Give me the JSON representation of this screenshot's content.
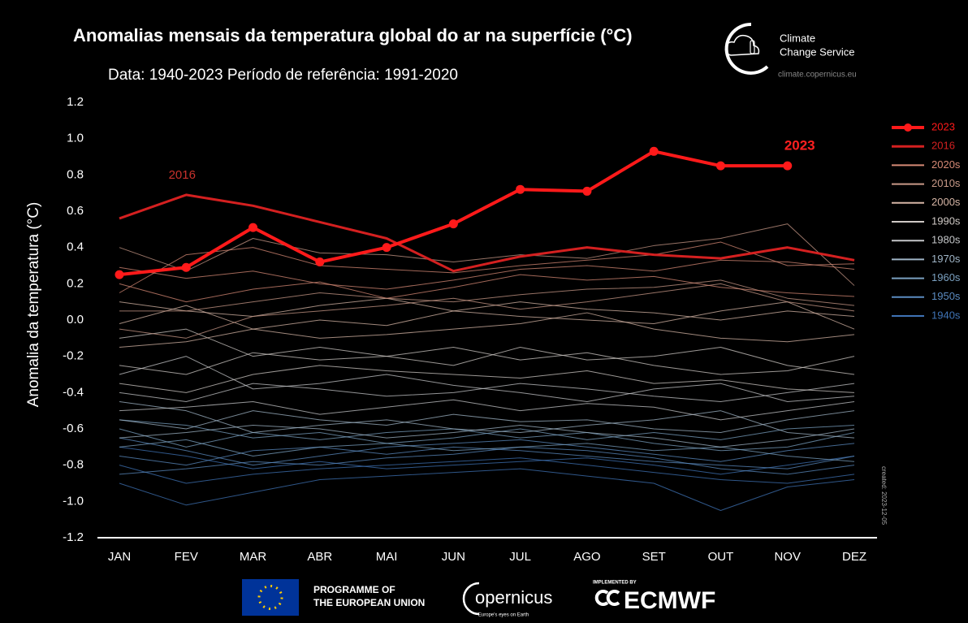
{
  "chart_data": {
    "type": "line",
    "title": "Anomalias mensais da temperatura global do ar na superfície (°C)",
    "subtitle": "Data: 1940-2023  Período de referência: 1991-2020",
    "y_label": "Anomalia da temperatura (°C)",
    "annotations": [
      {
        "text": "2016",
        "color": "#c8322c"
      },
      {
        "text": "2023",
        "color": "#ff2020"
      }
    ],
    "categories": [
      "JAN",
      "FEV",
      "MAR",
      "ABR",
      "MAI",
      "JUN",
      "JUL",
      "AGO",
      "SET",
      "OUT",
      "NOV",
      "DEZ"
    ],
    "ylim": [
      -1.2,
      1.2
    ],
    "yticks": [
      -1.2,
      {
        "value": -1,
        "label": "-1.0"
      },
      -0.8,
      -0.6,
      -0.4,
      -0.2,
      {
        "value": 0,
        "label": "0.0"
      },
      0.2,
      0.4,
      0.6,
      0.8,
      {
        "value": 1,
        "label": "1.0"
      },
      1.2
    ],
    "series": [
      {
        "name": "2023",
        "color": "#ff1a1a",
        "width": 4,
        "marker": true,
        "values": [
          0.25,
          0.29,
          0.51,
          0.32,
          0.4,
          0.53,
          0.72,
          0.71,
          0.93,
          0.85,
          0.85,
          null
        ]
      },
      {
        "name": "2016",
        "color": "#d42020",
        "width": 3,
        "values": [
          0.56,
          0.69,
          0.63,
          0.54,
          0.45,
          0.27,
          0.35,
          0.4,
          0.36,
          0.34,
          0.4,
          0.33
        ]
      },
      {
        "name": "2020s",
        "color": "#d78a75",
        "values": [
          0.29,
          0.23,
          0.27,
          0.2,
          0.17,
          0.22,
          0.28,
          0.3,
          0.27,
          0.33,
          0.32,
          0.28
        ]
      },
      {
        "name": "2020s",
        "color": "#d78a75",
        "values": [
          0.15,
          0.36,
          0.4,
          0.3,
          0.28,
          0.26,
          0.3,
          0.33,
          0.36,
          0.43,
          0.3,
          0.31
        ]
      },
      {
        "name": "2020s",
        "color": "#d78a75",
        "values": [
          0.2,
          0.1,
          0.17,
          0.21,
          0.12,
          0.18,
          0.25,
          0.22,
          0.24,
          0.18,
          0.15,
          0.13
        ]
      },
      {
        "name": "2010s",
        "color": "#c99a88",
        "values": [
          0.4,
          0.27,
          0.45,
          0.37,
          0.36,
          0.32,
          0.36,
          0.34,
          0.41,
          0.45,
          0.53,
          0.19
        ]
      },
      {
        "name": "2010s",
        "color": "#c99a88",
        "values": [
          0.05,
          0.05,
          0.1,
          0.15,
          0.12,
          0.1,
          0.14,
          0.17,
          0.18,
          0.22,
          0.12,
          0.08
        ]
      },
      {
        "name": "2010s",
        "color": "#c99a88",
        "values": [
          -0.05,
          -0.1,
          0.02,
          0.05,
          0.08,
          0.12,
          0.06,
          0.1,
          0.15,
          0.2,
          0.1,
          0.05
        ]
      },
      {
        "name": "2000s",
        "color": "#d6b5a5",
        "values": [
          -0.02,
          0.08,
          -0.05,
          0.0,
          -0.03,
          0.05,
          0.02,
          0.0,
          -0.02,
          0.05,
          0.1,
          -0.05
        ]
      },
      {
        "name": "2000s",
        "color": "#d6b5a5",
        "values": [
          -0.15,
          -0.12,
          -0.05,
          -0.1,
          -0.08,
          -0.05,
          -0.02,
          0.04,
          -0.05,
          -0.1,
          -0.12,
          -0.08
        ]
      },
      {
        "name": "2000s",
        "color": "#d6b5a5",
        "values": [
          0.1,
          0.05,
          0.02,
          0.08,
          0.12,
          0.05,
          0.1,
          0.06,
          0.04,
          0.0,
          0.05,
          0.02
        ]
      },
      {
        "name": "1990s",
        "color": "#cfc9c5",
        "values": [
          -0.25,
          -0.3,
          -0.18,
          -0.22,
          -0.2,
          -0.15,
          -0.22,
          -0.18,
          -0.25,
          -0.3,
          -0.28,
          -0.2
        ]
      },
      {
        "name": "1990s",
        "color": "#cfc9c5",
        "values": [
          -0.1,
          -0.05,
          -0.2,
          -0.15,
          -0.2,
          -0.25,
          -0.15,
          -0.22,
          -0.2,
          -0.15,
          -0.25,
          -0.3
        ]
      },
      {
        "name": "1990s",
        "color": "#cfc9c5",
        "values": [
          -0.35,
          -0.4,
          -0.3,
          -0.25,
          -0.28,
          -0.3,
          -0.32,
          -0.28,
          -0.35,
          -0.33,
          -0.38,
          -0.4
        ]
      },
      {
        "name": "1980s",
        "color": "#c4c6c8",
        "values": [
          -0.4,
          -0.45,
          -0.35,
          -0.38,
          -0.42,
          -0.4,
          -0.35,
          -0.38,
          -0.42,
          -0.45,
          -0.4,
          -0.35
        ]
      },
      {
        "name": "1980s",
        "color": "#c4c6c8",
        "values": [
          -0.3,
          -0.2,
          -0.38,
          -0.35,
          -0.3,
          -0.36,
          -0.4,
          -0.45,
          -0.38,
          -0.35,
          -0.45,
          -0.42
        ]
      },
      {
        "name": "1980s",
        "color": "#c4c6c8",
        "values": [
          -0.5,
          -0.48,
          -0.45,
          -0.52,
          -0.48,
          -0.44,
          -0.5,
          -0.46,
          -0.48,
          -0.55,
          -0.5,
          -0.45
        ]
      },
      {
        "name": "1970s",
        "color": "#9fb4c6",
        "values": [
          -0.55,
          -0.6,
          -0.5,
          -0.55,
          -0.58,
          -0.52,
          -0.56,
          -0.55,
          -0.6,
          -0.62,
          -0.55,
          -0.5
        ]
      },
      {
        "name": "1970s",
        "color": "#9fb4c6",
        "values": [
          -0.45,
          -0.5,
          -0.62,
          -0.58,
          -0.55,
          -0.6,
          -0.62,
          -0.58,
          -0.55,
          -0.5,
          -0.62,
          -0.65
        ]
      },
      {
        "name": "1970s",
        "color": "#9fb4c6",
        "values": [
          -0.65,
          -0.62,
          -0.58,
          -0.6,
          -0.65,
          -0.62,
          -0.58,
          -0.62,
          -0.65,
          -0.7,
          -0.66,
          -0.6
        ]
      },
      {
        "name": "1960s",
        "color": "#7aa0c0",
        "values": [
          -0.6,
          -0.7,
          -0.62,
          -0.66,
          -0.62,
          -0.6,
          -0.65,
          -0.62,
          -0.68,
          -0.72,
          -0.7,
          -0.62
        ]
      },
      {
        "name": "1960s",
        "color": "#7aa0c0",
        "values": [
          -0.7,
          -0.66,
          -0.75,
          -0.7,
          -0.68,
          -0.72,
          -0.7,
          -0.68,
          -0.72,
          -0.7,
          -0.75,
          -0.78
        ]
      },
      {
        "name": "1960s",
        "color": "#7aa0c0",
        "values": [
          -0.55,
          -0.58,
          -0.65,
          -0.62,
          -0.68,
          -0.65,
          -0.6,
          -0.66,
          -0.62,
          -0.66,
          -0.6,
          -0.58
        ]
      },
      {
        "name": "1950s",
        "color": "#5b8bc0",
        "values": [
          -0.75,
          -0.8,
          -0.72,
          -0.7,
          -0.74,
          -0.7,
          -0.72,
          -0.75,
          -0.78,
          -0.8,
          -0.82,
          -0.75
        ]
      },
      {
        "name": "1950s",
        "color": "#5b8bc0",
        "values": [
          -0.65,
          -0.72,
          -0.8,
          -0.75,
          -0.7,
          -0.68,
          -0.66,
          -0.7,
          -0.74,
          -0.78,
          -0.72,
          -0.68
        ]
      },
      {
        "name": "1950s",
        "color": "#5b8bc0",
        "values": [
          -0.85,
          -0.82,
          -0.78,
          -0.8,
          -0.76,
          -0.74,
          -0.7,
          -0.72,
          -0.76,
          -0.82,
          -0.85,
          -0.8
        ]
      },
      {
        "name": "1940s",
        "color": "#3f73b5",
        "values": [
          -0.8,
          -0.9,
          -0.85,
          -0.82,
          -0.8,
          -0.78,
          -0.76,
          -0.8,
          -0.84,
          -0.88,
          -0.9,
          -0.85
        ]
      },
      {
        "name": "1940s",
        "color": "#3f73b5",
        "values": [
          -0.9,
          -1.02,
          -0.95,
          -0.88,
          -0.86,
          -0.84,
          -0.82,
          -0.86,
          -0.9,
          -1.05,
          -0.92,
          -0.88
        ]
      },
      {
        "name": "1940s",
        "color": "#3f73b5",
        "values": [
          -0.7,
          -0.75,
          -0.82,
          -0.78,
          -0.82,
          -0.8,
          -0.78,
          -0.76,
          -0.8,
          -0.85,
          -0.8,
          -0.75
        ]
      }
    ]
  },
  "branding": {
    "service_line1": "Climate",
    "service_line2": "Change Service",
    "url": "climate.copernicus.eu",
    "created": "created: 2023-12-05",
    "eu_line1": "PROGRAMME OF",
    "eu_line2": "THE EUROPEAN UNION",
    "copernicus": "opernicus",
    "copernicus_tag": "Europe's eyes on Earth",
    "implemented": "IMPLEMENTED BY",
    "ecmwf": "ECMWF"
  }
}
